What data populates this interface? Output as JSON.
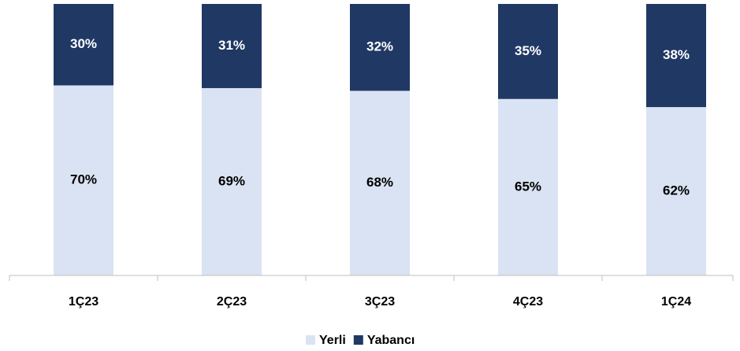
{
  "chart_data": {
    "type": "stacked_bar",
    "categories": [
      "1Ç23",
      "2Ç23",
      "3Ç23",
      "4Ç23",
      "1Ç24"
    ],
    "series": [
      {
        "name": "Yerli",
        "color": "#dae3f3",
        "label_color": "#000000",
        "values": [
          70,
          69,
          68,
          65,
          62
        ],
        "value_labels": [
          "70%",
          "69%",
          "68%",
          "65%",
          "62%"
        ]
      },
      {
        "name": "Yabancı",
        "color": "#203864",
        "label_color": "#ffffff",
        "values": [
          30,
          31,
          32,
          35,
          38
        ],
        "value_labels": [
          "30%",
          "31%",
          "32%",
          "35%",
          "38%"
        ]
      }
    ]
  }
}
